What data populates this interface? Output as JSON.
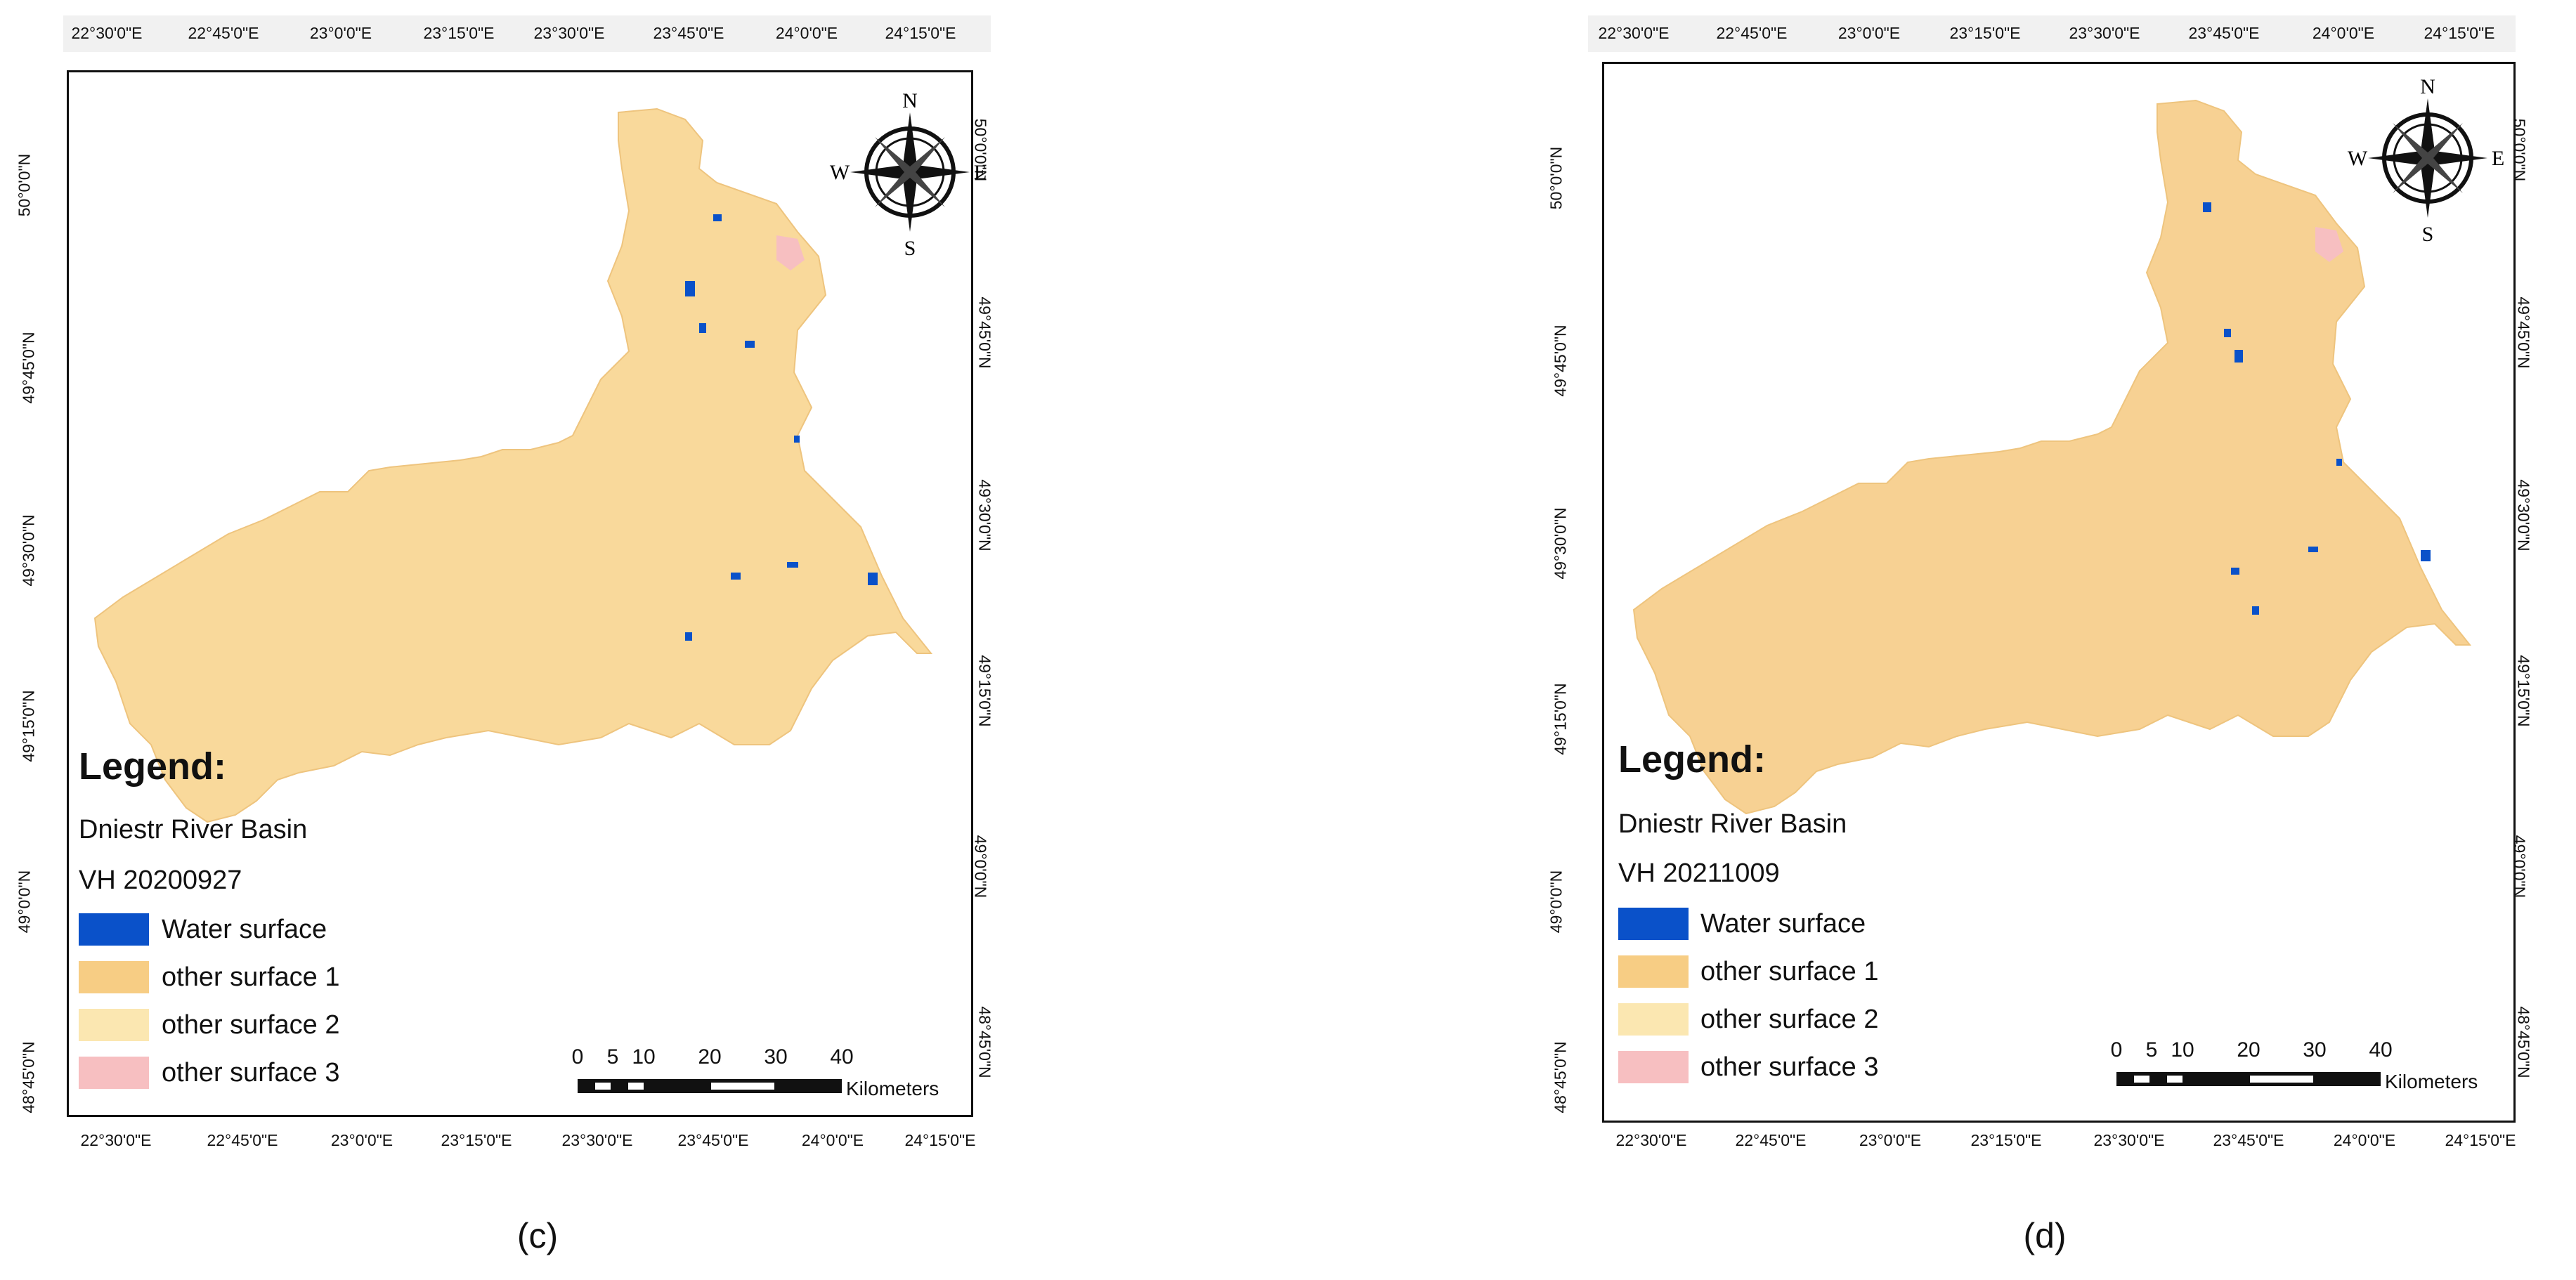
{
  "colors": {
    "water": "#0a51c9",
    "surface1": "#f7cd84",
    "surface2": "#fbe7b1",
    "surface3": "#f7bfc1",
    "map_fill": "#f9d99b"
  },
  "compass": {
    "n": "N",
    "s": "S",
    "e": "E",
    "w": "W",
    "icon": "compass-rose-icon"
  },
  "panels": [
    {
      "id": "c",
      "label": "(c)",
      "top_ticks": [
        "22°30'0\"E",
        "22°45'0\"E",
        "23°0'0\"E",
        "23°15'0\"E",
        "23°30'0\"E",
        "23°45'0\"E",
        "24°0'0\"E",
        "24°15'0\"E"
      ],
      "bottom_ticks": [
        "22°30'0\"E",
        "22°45'0\"E",
        "23°0'0\"E",
        "23°15'0\"E",
        "23°30'0\"E",
        "23°45'0\"E",
        "24°0'0\"E",
        "24°15'0\"E"
      ],
      "left_ticks": [
        "50°0'0\"N",
        "49°45'0\"N",
        "49°30'0\"N",
        "49°15'0\"N",
        "49°0'0\"N",
        "48°45'0\"N"
      ],
      "right_ticks": [
        "50°0'0\"N",
        "49°45'0\"N",
        "49°30'0\"N",
        "49°15'0\"N",
        "49°0'0\"N",
        "48°45'0\"N"
      ],
      "legend": {
        "title": "Legend:",
        "basin": "Dniestr  River Basin",
        "date": "VH 20200927",
        "items": [
          "Water surface",
          "other surface 1",
          "other surface 2",
          "other surface 3"
        ]
      },
      "scale": {
        "labels": [
          "0",
          "5",
          "10",
          "20",
          "30",
          "40"
        ],
        "unit": "Kilometers"
      }
    },
    {
      "id": "d",
      "label": "(d)",
      "top_ticks": [
        "22°30'0\"E",
        "22°45'0\"E",
        "23°0'0\"E",
        "23°15'0\"E",
        "23°30'0\"E",
        "23°45'0\"E",
        "24°0'0\"E",
        "24°15'0\"E"
      ],
      "bottom_ticks": [
        "22°30'0\"E",
        "22°45'0\"E",
        "23°0'0\"E",
        "23°15'0\"E",
        "23°30'0\"E",
        "23°45'0\"E",
        "24°0'0\"E",
        "24°15'0\"E"
      ],
      "left_ticks": [
        "50°0'0\"N",
        "49°45'0\"N",
        "49°30'0\"N",
        "49°15'0\"N",
        "49°0'0\"N",
        "48°45'0\"N"
      ],
      "right_ticks": [
        "50°0'0\"N",
        "49°45'0\"N",
        "49°30'0\"N",
        "49°15'0\"N",
        "49°0'0\"N",
        "48°45'0\"N"
      ],
      "legend": {
        "title": "Legend:",
        "basin": "Dniestr  River Basin",
        "date": "VH 20211009",
        "items": [
          "Water surface",
          "other surface 1",
          "other surface 2",
          "other surface 3"
        ]
      },
      "scale": {
        "labels": [
          "0",
          "5",
          "10",
          "20",
          "30",
          "40"
        ],
        "unit": "Kilometers"
      }
    }
  ]
}
